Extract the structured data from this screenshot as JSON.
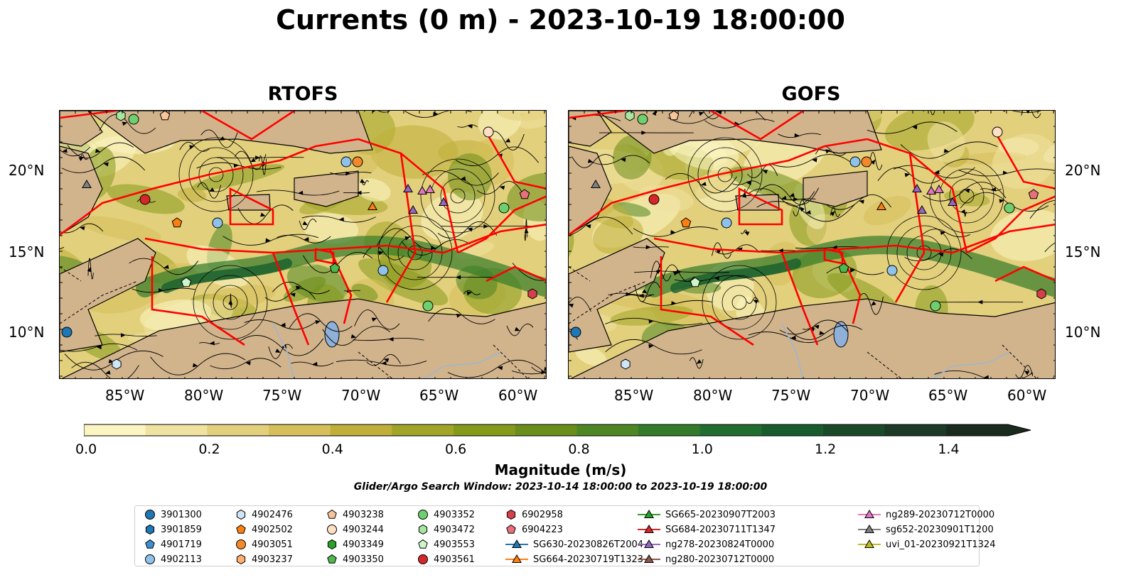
{
  "title": "Currents (0 m) - 2023-10-19 18:00:00",
  "panels": [
    {
      "name": "RTOFS"
    },
    {
      "name": "GOFS"
    }
  ],
  "axes": {
    "lon_ticks": [
      "85°W",
      "80°W",
      "75°W",
      "70°W",
      "65°W",
      "60°W"
    ],
    "lat_ticks": [
      "20°N",
      "15°N",
      "10°N"
    ]
  },
  "colorbar": {
    "label": "Magnitude (m/s)",
    "ticks": [
      "0.0",
      "0.2",
      "0.4",
      "0.6",
      "0.8",
      "1.0",
      "1.2",
      "1.4"
    ],
    "colors": [
      "#fbf5c2",
      "#f0e2a0",
      "#e3d07c",
      "#d6bf5a",
      "#bfae3a",
      "#a0a427",
      "#85991a",
      "#6b8e1a",
      "#4f8624",
      "#337a2a",
      "#1f6d2f",
      "#185c2d",
      "#1a4a2a",
      "#1c3a25",
      "#1a2a1c"
    ]
  },
  "search_window": "Glider/Argo Search Window: 2023-10-14 18:00:00 to 2023-10-19 18:00:00",
  "legend": [
    {
      "label": "3901300",
      "marker": "circle",
      "color": "#1f77b4"
    },
    {
      "label": "3901859",
      "marker": "hexagon",
      "color": "#1f77b4"
    },
    {
      "label": "4901719",
      "marker": "pentagon",
      "color": "#3b8fd0"
    },
    {
      "label": "4902113",
      "marker": "circle",
      "color": "#8fc2ea"
    },
    {
      "label": "4902476",
      "marker": "hexagon",
      "color": "#cfe6f8"
    },
    {
      "label": "4902502",
      "marker": "pentagon",
      "color": "#ff7f0e"
    },
    {
      "label": "4903051",
      "marker": "circle",
      "color": "#f5892a"
    },
    {
      "label": "4903237",
      "marker": "hexagon",
      "color": "#ffb070"
    },
    {
      "label": "4903238",
      "marker": "pentagon",
      "color": "#f8c49a"
    },
    {
      "label": "4903244",
      "marker": "circle",
      "color": "#fde0c4"
    },
    {
      "label": "4903349",
      "marker": "hexagon",
      "color": "#2ca02c"
    },
    {
      "label": "4903350",
      "marker": "pentagon",
      "color": "#4db84d"
    },
    {
      "label": "4903352",
      "marker": "circle",
      "color": "#6fcf6f"
    },
    {
      "label": "4903472",
      "marker": "hexagon",
      "color": "#a8e6a0"
    },
    {
      "label": "4903553",
      "marker": "pentagon",
      "color": "#cff5c8"
    },
    {
      "label": "4903561",
      "marker": "circle",
      "color": "#d62728"
    },
    {
      "label": "6902958",
      "marker": "hexagon",
      "color": "#d6404a"
    },
    {
      "label": "6904223",
      "marker": "pentagon",
      "color": "#e8707a"
    },
    {
      "label": "SG630-20230826T2004",
      "marker": "triangle-line",
      "color": "#1f77b4"
    },
    {
      "label": "SG664-20230719T1323",
      "marker": "triangle-line",
      "color": "#ff7f0e"
    },
    {
      "label": "SG665-20230907T2003",
      "marker": "triangle-line",
      "color": "#2ca02c"
    },
    {
      "label": "SG684-20230711T1347",
      "marker": "triangle-line",
      "color": "#d62728"
    },
    {
      "label": "ng278-20230824T0000",
      "marker": "triangle-line",
      "color": "#9467bd"
    },
    {
      "label": "ng280-20230712T0000",
      "marker": "triangle-line",
      "color": "#8c564b"
    },
    {
      "label": "ng289-20230712T0000",
      "marker": "triangle-line",
      "color": "#e377c2"
    },
    {
      "label": "sg652-20230901T1200",
      "marker": "triangle-line",
      "color": "#7f7f7f"
    },
    {
      "label": "uvi_01-20230921T1324",
      "marker": "triangle-line",
      "color": "#bcbd22"
    }
  ]
}
